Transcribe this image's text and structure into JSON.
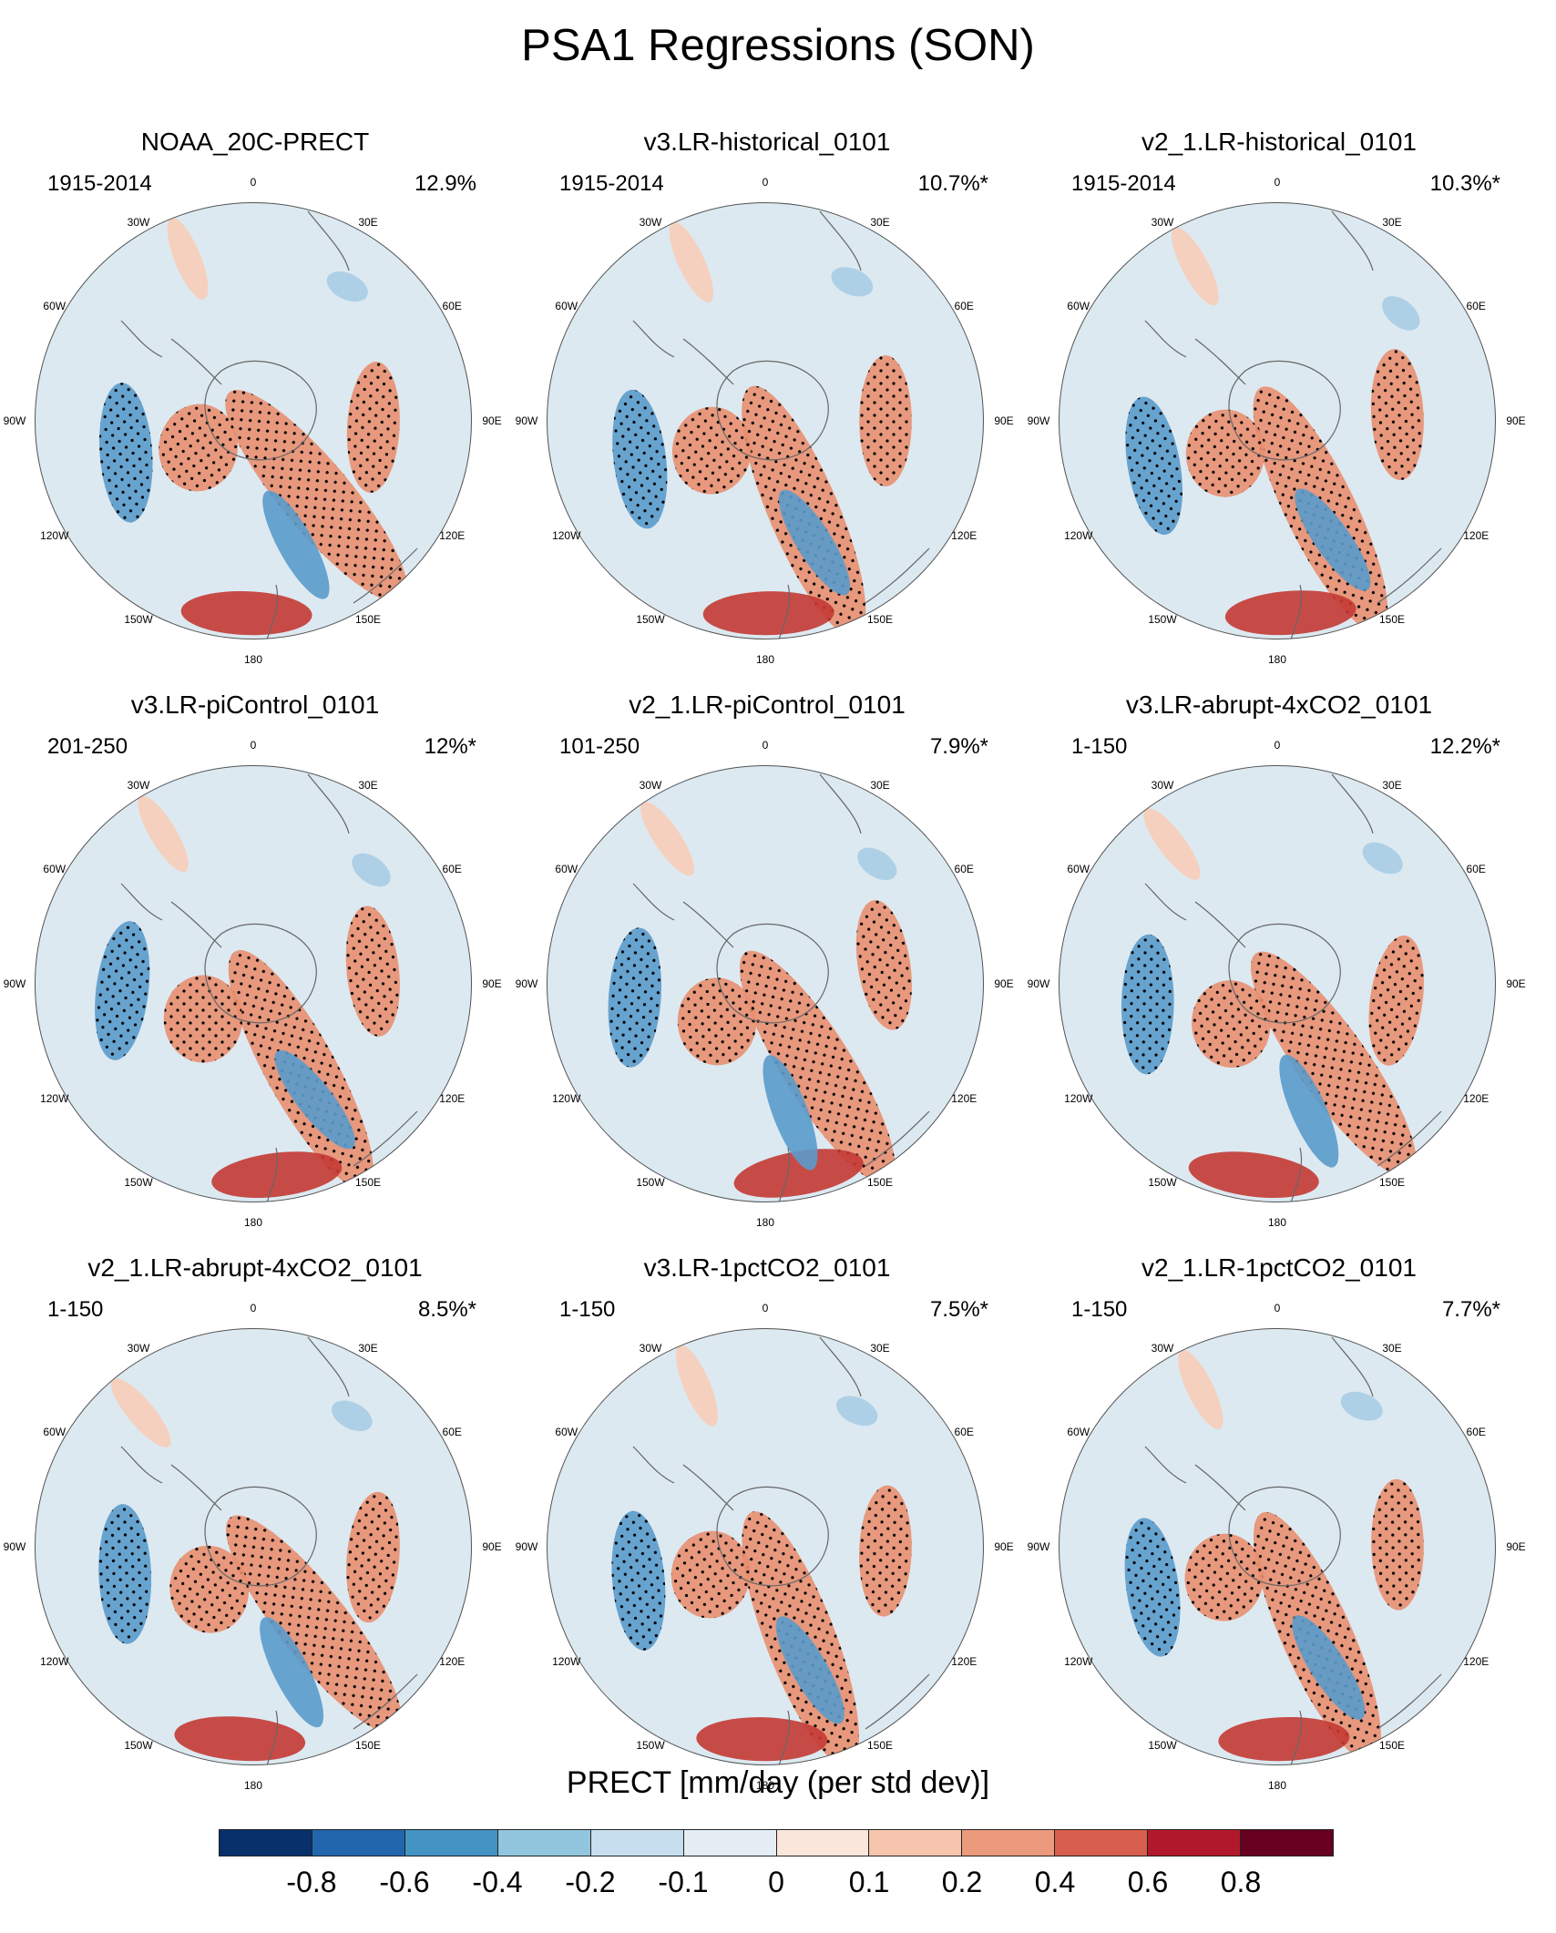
{
  "title": "PSA1 Regressions (SON)",
  "longitude_labels": [
    "0",
    "30E",
    "60E",
    "90E",
    "120E",
    "150E",
    "180",
    "150W",
    "120W",
    "90W",
    "60W",
    "30W"
  ],
  "panels": [
    {
      "name": "NOAA_20C-PRECT",
      "period": "1915-2014",
      "percent": "12.9%"
    },
    {
      "name": "v3.LR-historical_0101",
      "period": "1915-2014",
      "percent": "10.7%*"
    },
    {
      "name": "v2_1.LR-historical_0101",
      "period": "1915-2014",
      "percent": "10.3%*"
    },
    {
      "name": "v3.LR-piControl_0101",
      "period": "201-250",
      "percent": "12%*"
    },
    {
      "name": "v2_1.LR-piControl_0101",
      "period": "101-250",
      "percent": "7.9%*"
    },
    {
      "name": "v3.LR-abrupt-4xCO2_0101",
      "period": "1-150",
      "percent": "12.2%*"
    },
    {
      "name": "v2_1.LR-abrupt-4xCO2_0101",
      "period": "1-150",
      "percent": "8.5%*"
    },
    {
      "name": "v3.LR-1pctCO2_0101",
      "period": "1-150",
      "percent": "7.5%*"
    },
    {
      "name": "v2_1.LR-1pctCO2_0101",
      "period": "1-150",
      "percent": "7.7%*"
    }
  ],
  "colorbar": {
    "title": "PRECT [mm/day (per std dev)]",
    "labels": [
      "-0.8",
      "-0.6",
      "-0.4",
      "-0.2",
      "-0.1",
      "0",
      "0.1",
      "0.2",
      "0.4",
      "0.6",
      "0.8"
    ],
    "colors": [
      "#08306b",
      "#2166ac",
      "#4393c3",
      "#92c5de",
      "#c7dfee",
      "#e4eef4",
      "#fbe6dc",
      "#f7c5ae",
      "#ec9a7c",
      "#d6604d",
      "#b2182b",
      "#67001f"
    ]
  },
  "field_colors": {
    "neg_strong": "#2166ac",
    "neg_mid": "#5a9bcb",
    "neg_weak": "#a9cde4",
    "background": "#dde9f1",
    "pos_weak": "#f7cdb8",
    "pos_mid": "#e88f70",
    "pos_strong": "#c33a34",
    "coast": "#666666",
    "stipple": "#000000"
  }
}
